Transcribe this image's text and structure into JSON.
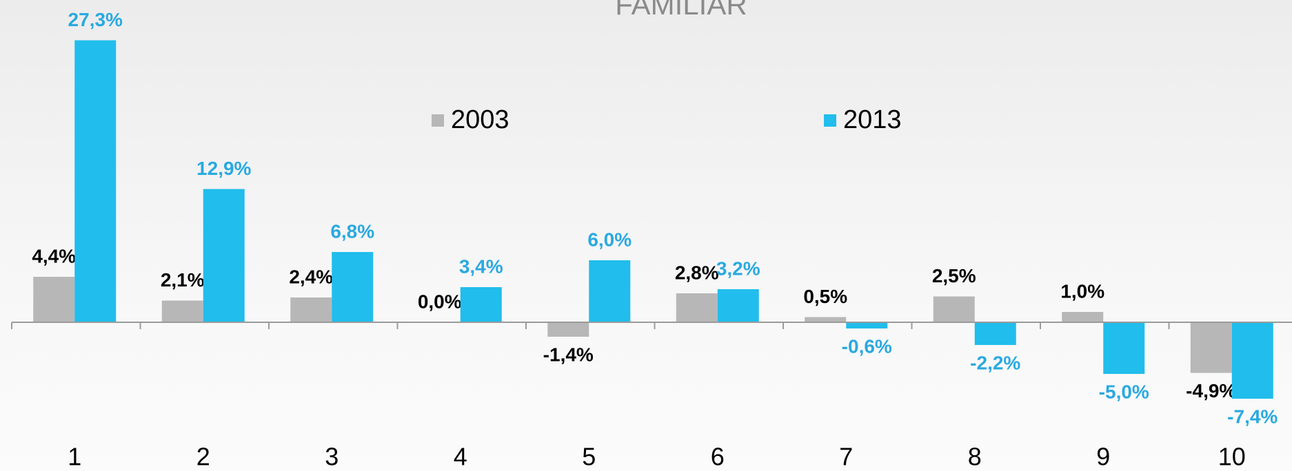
{
  "chart_data": {
    "type": "bar",
    "title": "FAMILIAR",
    "categories": [
      "1",
      "2",
      "3",
      "4",
      "5",
      "6",
      "7",
      "8",
      "9",
      "10"
    ],
    "series": [
      {
        "name": "2003",
        "color": "#b7b7b7",
        "label_color": "#000000",
        "values": [
          4.4,
          2.1,
          2.4,
          0.0,
          -1.4,
          2.8,
          0.5,
          2.5,
          1.0,
          -4.9
        ],
        "value_labels": [
          "4,4%",
          "2,1%",
          "2,4%",
          "0,0%",
          "-1,4%",
          "2,8%",
          "0,5%",
          "2,5%",
          "1,0%",
          "-4,9%"
        ]
      },
      {
        "name": "2013",
        "color": "#21bdec",
        "label_color": "#2aa9e0",
        "values": [
          27.3,
          12.9,
          6.8,
          3.4,
          6.0,
          3.2,
          -0.6,
          -2.2,
          -5.0,
          -7.4
        ],
        "value_labels": [
          "27,3%",
          "12,9%",
          "6,8%",
          "3,4%",
          "6,0%",
          "3,2%",
          "-0,6%",
          "-2,2%",
          "-5,0%",
          "-7,4%"
        ]
      }
    ],
    "ylim": [
      -10,
      30
    ],
    "legend": "top"
  }
}
